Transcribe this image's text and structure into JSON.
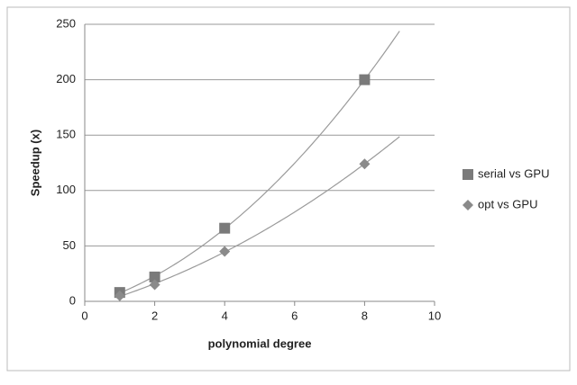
{
  "chart_data": {
    "type": "scatter",
    "x_label": "polynomial degree",
    "y_label": "Speedup (x)",
    "x": [
      1,
      2,
      4,
      8
    ],
    "series": [
      {
        "name": "serial vs GPU",
        "color": "#7a7a7a",
        "marker": "square",
        "values": [
          8,
          22,
          66,
          200
        ]
      },
      {
        "name": "opt vs GPU",
        "color": "#8a8a8a",
        "marker": "diamond",
        "values": [
          5,
          15,
          45,
          124
        ]
      }
    ],
    "xlim": [
      0,
      10
    ],
    "xticks": [
      0,
      2,
      4,
      6,
      8,
      10
    ],
    "ylim": [
      0,
      250
    ],
    "yticks": [
      0,
      50,
      100,
      150,
      200,
      250
    ],
    "grid": true,
    "legend": "right",
    "trendline": {
      "order": 2,
      "forward": 1,
      "color": "#9a9a9a"
    }
  }
}
